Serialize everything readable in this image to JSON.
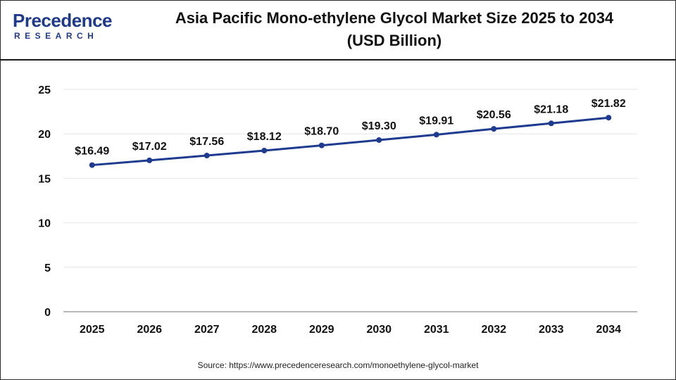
{
  "header": {
    "logo_word": "Precedence",
    "logo_sub": "RESEARCH",
    "title_line1": "Asia Pacific Mono-ethylene Glycol Market Size 2025 to 2034",
    "title_line2": "(USD Billion)"
  },
  "footer": {
    "source": "Source: https://www.precedenceresearch.com/monoethylene-glycol-market"
  },
  "colors": {
    "line": "#1f3b8f",
    "brand": "#1f3a8a",
    "grid": "#e6e6e6",
    "axis": "#8c8c8c"
  },
  "chart_data": {
    "type": "line",
    "title": "Asia Pacific Mono-ethylene Glycol Market Size 2025 to 2034 (USD Billion)",
    "xlabel": "",
    "ylabel": "",
    "categories": [
      "2025",
      "2026",
      "2027",
      "2028",
      "2029",
      "2030",
      "2031",
      "2032",
      "2033",
      "2034"
    ],
    "values": [
      16.49,
      17.02,
      17.56,
      18.12,
      18.7,
      19.3,
      19.91,
      20.56,
      21.18,
      21.82
    ],
    "data_labels": [
      "$16.49",
      "$17.02",
      "$17.56",
      "$18.12",
      "$18.70",
      "$19.30",
      "$19.91",
      "$20.56",
      "$21.18",
      "$21.82"
    ],
    "ylim": [
      0,
      25
    ],
    "yticks": [
      0,
      5,
      10,
      15,
      20,
      25
    ],
    "grid": true,
    "legend": "none"
  }
}
